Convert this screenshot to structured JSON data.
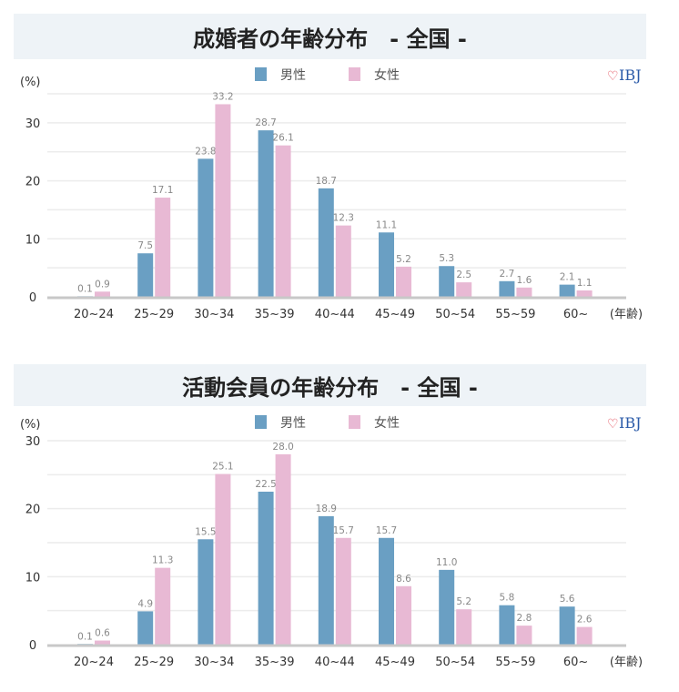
{
  "colors": {
    "male": "#6a9fc3",
    "female": "#e8b9d4"
  },
  "logo": "IBJ",
  "chart_data": [
    {
      "type": "bar",
      "title": "成婚者の年齢分布　- 全国 -",
      "ylabel": "(%)",
      "xlabel": "(年齢)",
      "ylim": [
        0,
        35
      ],
      "yticks": [
        0,
        10,
        20,
        30
      ],
      "grid_step": 5,
      "legend": [
        "男性",
        "女性"
      ],
      "legend_position": "top-center",
      "categories": [
        "20~24",
        "25~29",
        "30~34",
        "35~39",
        "40~44",
        "45~49",
        "50~54",
        "55~59",
        "60~"
      ],
      "series": [
        {
          "name": "男性",
          "values": [
            0.1,
            7.5,
            23.8,
            28.7,
            18.7,
            11.1,
            5.3,
            2.7,
            2.1
          ]
        },
        {
          "name": "女性",
          "values": [
            0.9,
            17.1,
            33.2,
            26.1,
            12.3,
            5.2,
            2.5,
            1.6,
            1.1
          ]
        }
      ]
    },
    {
      "type": "bar",
      "title": "活動会員の年齢分布　- 全国 -",
      "ylabel": "(%)",
      "xlabel": "(年齢)",
      "ylim": [
        0,
        30
      ],
      "yticks": [
        0,
        10,
        20,
        30
      ],
      "grid_step": 5,
      "legend": [
        "男性",
        "女性"
      ],
      "legend_position": "top-center",
      "categories": [
        "20~24",
        "25~29",
        "30~34",
        "35~39",
        "40~44",
        "45~49",
        "50~54",
        "55~59",
        "60~"
      ],
      "series": [
        {
          "name": "男性",
          "values": [
            0.1,
            4.9,
            15.5,
            22.5,
            18.9,
            15.7,
            11.0,
            5.8,
            5.6
          ]
        },
        {
          "name": "女性",
          "values": [
            0.6,
            11.3,
            25.1,
            28.0,
            15.7,
            8.6,
            5.2,
            2.8,
            2.6
          ]
        }
      ]
    }
  ]
}
